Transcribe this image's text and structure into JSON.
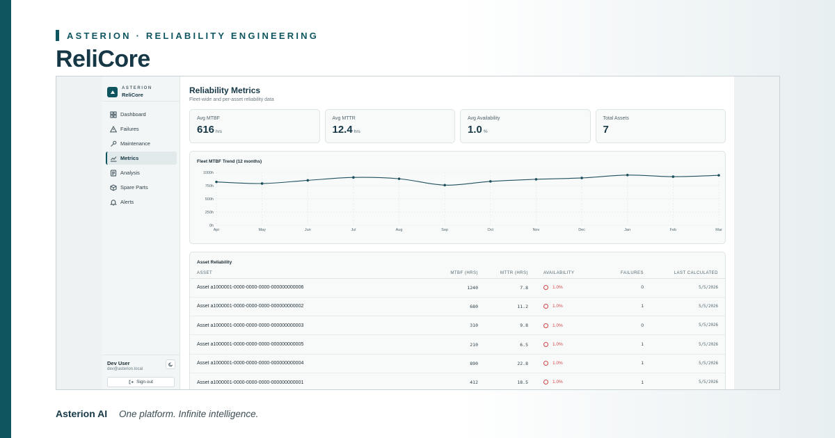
{
  "slide": {
    "eyebrow": "ASTERION · RELIABILITY ENGINEERING",
    "product": "ReliCore",
    "footer_brand": "Asterion AI",
    "footer_tagline": "One platform. Infinite intelligence."
  },
  "colors": {
    "accent": "#0f5560",
    "danger": "#d64545",
    "line": "#1e4f5c"
  },
  "sidebar": {
    "org": "ASTERION",
    "app": "ReliCore",
    "items": [
      {
        "label": "Dashboard",
        "icon": "dashboard-icon",
        "active": false
      },
      {
        "label": "Failures",
        "icon": "warning-icon",
        "active": false
      },
      {
        "label": "Maintenance",
        "icon": "wrench-icon",
        "active": false
      },
      {
        "label": "Metrics",
        "icon": "line-chart-icon",
        "active": true
      },
      {
        "label": "Analysis",
        "icon": "document-icon",
        "active": false
      },
      {
        "label": "Spare Parts",
        "icon": "box-icon",
        "active": false
      },
      {
        "label": "Alerts",
        "icon": "bell-icon",
        "active": false
      }
    ],
    "user": {
      "name": "Dev User",
      "email": "dev@asterion.local",
      "signout": "Sign out"
    }
  },
  "main": {
    "title": "Reliability Metrics",
    "subtitle": "Fleet-wide and per-asset reliability data",
    "kpis": [
      {
        "label": "Avg MTBF",
        "value": "616",
        "unit": "hrs"
      },
      {
        "label": "Avg MTTR",
        "value": "12.4",
        "unit": "hrs"
      },
      {
        "label": "Avg Availability",
        "value": "1.0",
        "unit": "%"
      },
      {
        "label": "Total Assets",
        "value": "7",
        "unit": ""
      }
    ],
    "table": {
      "title": "Asset Reliability",
      "headers": [
        "ASSET",
        "MTBF (HRS)",
        "MTTR (HRS)",
        "AVAILABILITY",
        "FAILURES",
        "LAST CALCULATED"
      ],
      "rows": [
        {
          "asset": "Asset a1000001-0000-0000-0000-000000000006",
          "mtbf": "1240",
          "mttr": "7.8",
          "availability": "1.0%",
          "failures": "0",
          "last": "5/5/2026"
        },
        {
          "asset": "Asset a1000001-0000-0000-0000-000000000002",
          "mtbf": "680",
          "mttr": "11.2",
          "availability": "1.0%",
          "failures": "1",
          "last": "5/5/2026"
        },
        {
          "asset": "Asset a1000001-0000-0000-0000-000000000003",
          "mtbf": "310",
          "mttr": "9.8",
          "availability": "1.0%",
          "failures": "0",
          "last": "5/5/2026"
        },
        {
          "asset": "Asset a1000001-0000-0000-0000-000000000005",
          "mtbf": "210",
          "mttr": "6.5",
          "availability": "1.0%",
          "failures": "1",
          "last": "5/5/2026"
        },
        {
          "asset": "Asset a1000001-0000-0000-0000-000000000004",
          "mtbf": "890",
          "mttr": "22.8",
          "availability": "1.0%",
          "failures": "1",
          "last": "5/5/2026"
        },
        {
          "asset": "Asset a1000001-0000-0000-0000-000000000001",
          "mtbf": "412",
          "mttr": "18.5",
          "availability": "1.0%",
          "failures": "1",
          "last": "5/5/2026"
        }
      ]
    }
  },
  "chart_data": {
    "type": "line",
    "title": "Fleet MTBF Trend (12 months)",
    "categories": [
      "Apr",
      "May",
      "Jun",
      "Jul",
      "Aug",
      "Sep",
      "Oct",
      "Nov",
      "Dec",
      "Jan",
      "Feb",
      "Mar"
    ],
    "series": [
      {
        "values": [
          820,
          790,
          850,
          905,
          880,
          760,
          830,
          870,
          895,
          950,
          920,
          945
        ]
      }
    ],
    "y_ticks": [
      "0h",
      "250h",
      "500h",
      "750h",
      "1000h"
    ],
    "ylim": [
      0,
      1000
    ],
    "grid": true,
    "legend": "none"
  }
}
